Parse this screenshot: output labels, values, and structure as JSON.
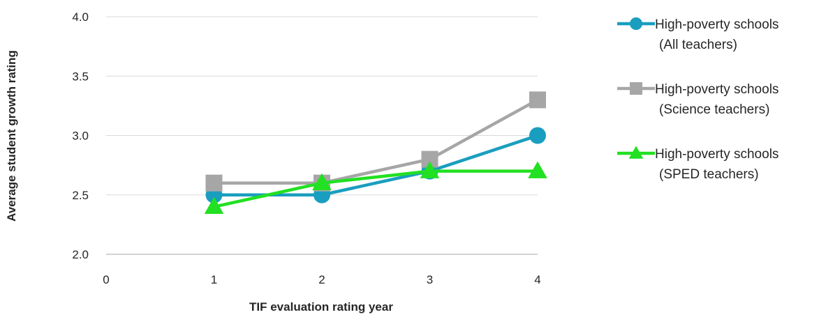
{
  "chart_data": {
    "type": "line",
    "xlabel": "TIF evaluation rating year",
    "ylabel": "Average student growth rating",
    "x_ticks": [
      "0",
      "1",
      "2",
      "3",
      "4"
    ],
    "y_ticks": [
      "2.0",
      "2.5",
      "3.0",
      "3.5",
      "4.0"
    ],
    "xlim": [
      0,
      4
    ],
    "ylim": [
      2.0,
      4.0
    ],
    "grid": "horizontal",
    "legend_position": "right",
    "x": [
      1,
      2,
      3,
      4
    ],
    "series": [
      {
        "name_line1": "High-poverty schools",
        "name_line2": "(All teachers)",
        "values": [
          2.5,
          2.5,
          2.7,
          3.0
        ],
        "color": "#1a9ebf",
        "marker": "circle"
      },
      {
        "name_line1": "High-poverty schools",
        "name_line2": "(Science teachers)",
        "values": [
          2.6,
          2.6,
          2.8,
          3.3
        ],
        "color": "#a6a6a6",
        "marker": "square"
      },
      {
        "name_line1": "High-poverty schools",
        "name_line2": "(SPED teachers)",
        "values": [
          2.4,
          2.6,
          2.7,
          2.7
        ],
        "color": "#22e022",
        "marker": "triangle"
      }
    ]
  }
}
